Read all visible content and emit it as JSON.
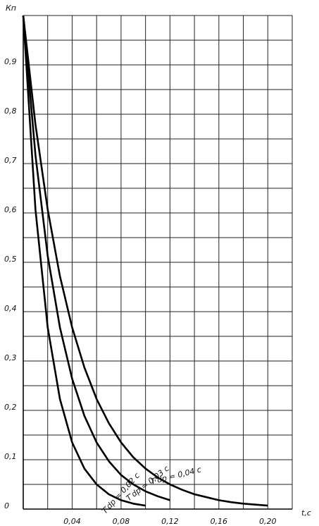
{
  "chart_data": {
    "type": "line",
    "x_label": "t,c",
    "y_label": "Кп",
    "xlim": [
      0,
      0.22
    ],
    "ylim": [
      0,
      1.0
    ],
    "xticks": [
      {
        "value": 0.04,
        "label": "0,04"
      },
      {
        "value": 0.08,
        "label": "0,08"
      },
      {
        "value": 0.12,
        "label": "0,12"
      },
      {
        "value": 0.16,
        "label": "0,16"
      },
      {
        "value": 0.2,
        "label": "0,20"
      }
    ],
    "yticks": [
      0,
      {
        "value": 0.1,
        "label": "0,1"
      },
      {
        "value": 0.2,
        "label": "0,2"
      },
      {
        "value": 0.3,
        "label": "0,3"
      },
      {
        "value": 0.4,
        "label": "0,4"
      },
      {
        "value": 0.5,
        "label": "0,5"
      },
      {
        "value": 0.6,
        "label": "0,6"
      },
      {
        "value": 0.7,
        "label": "0,7"
      },
      {
        "value": 0.8,
        "label": "0,8"
      },
      {
        "value": 0.9,
        "label": "0,9"
      }
    ],
    "xgrid": [
      0,
      0.02,
      0.04,
      0.06,
      0.08,
      0.1,
      0.12,
      0.14,
      0.16,
      0.18,
      0.2,
      0.22
    ],
    "ygrid": [
      0,
      0.05,
      0.1,
      0.15,
      0.2,
      0.25,
      0.3,
      0.35,
      0.4,
      0.45,
      0.5,
      0.55,
      0.6,
      0.65,
      0.7,
      0.75,
      0.8,
      0.85,
      0.9,
      0.95,
      1.0
    ],
    "grid": true,
    "series": [
      {
        "name": "T′dp = 0,02 c",
        "color": "#000000",
        "x": [
          0,
          0.01,
          0.02,
          0.03,
          0.04,
          0.05,
          0.06,
          0.07,
          0.08,
          0.09,
          0.1
        ],
        "values": [
          1,
          0.607,
          0.368,
          0.223,
          0.135,
          0.082,
          0.05,
          0.03,
          0.018,
          0.011,
          0.007
        ]
      },
      {
        "name": "T′dp = 0,03 c",
        "color": "#000000",
        "x": [
          0,
          0.01,
          0.02,
          0.03,
          0.04,
          0.05,
          0.06,
          0.07,
          0.08,
          0.09,
          0.1,
          0.11,
          0.12
        ],
        "values": [
          1,
          0.717,
          0.513,
          0.368,
          0.264,
          0.189,
          0.135,
          0.097,
          0.069,
          0.05,
          0.036,
          0.026,
          0.018
        ]
      },
      {
        "name": "T′dp = 0,04 c",
        "color": "#000000",
        "x": [
          0,
          0.01,
          0.02,
          0.03,
          0.04,
          0.05,
          0.06,
          0.07,
          0.08,
          0.09,
          0.1,
          0.11,
          0.12,
          0.13,
          0.14,
          0.15,
          0.16,
          0.17,
          0.18,
          0.19,
          0.2
        ],
        "values": [
          1,
          0.779,
          0.607,
          0.472,
          0.368,
          0.287,
          0.223,
          0.174,
          0.135,
          0.105,
          0.082,
          0.064,
          0.05,
          0.039,
          0.03,
          0.024,
          0.018,
          0.014,
          0.011,
          0.009,
          0.007
        ]
      }
    ]
  }
}
